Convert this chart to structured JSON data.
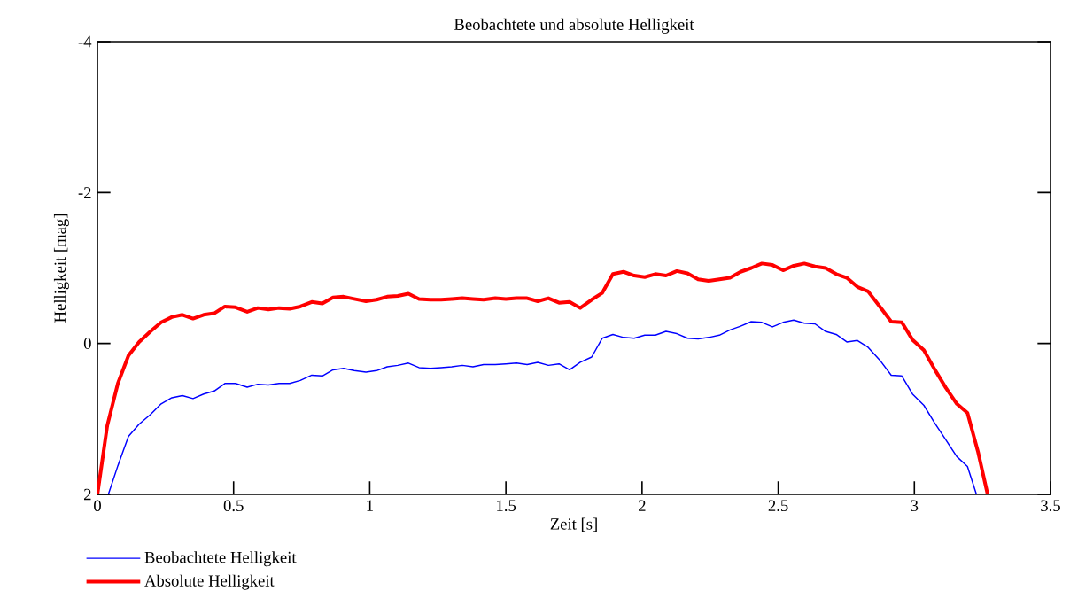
{
  "chart_data": {
    "type": "line",
    "title": "Beobachtete und absolute Helligkeit",
    "xlabel": "Zeit [s]",
    "ylabel": "Helligkeit [mag]",
    "xlim": [
      0,
      3.5
    ],
    "ylim": [
      2,
      -4
    ],
    "xticks": [
      0,
      0.5,
      1,
      1.5,
      2,
      2.5,
      3,
      3.5
    ],
    "yticks": [
      -4,
      -2,
      0,
      2
    ],
    "grid": false,
    "legend": "bottom",
    "marker": "none",
    "line_style": "solid",
    "series": [
      {
        "name": "Beobachtete Helligkeit",
        "color": "#0000ff",
        "x": [
          0.04,
          0.075,
          0.114,
          0.153,
          0.195,
          0.234,
          0.273,
          0.312,
          0.351,
          0.39,
          0.429,
          0.468,
          0.507,
          0.55,
          0.589,
          0.628,
          0.667,
          0.706,
          0.745,
          0.787,
          0.826,
          0.865,
          0.904,
          0.943,
          0.986,
          1.025,
          1.064,
          1.103,
          1.142,
          1.181,
          1.223,
          1.262,
          1.301,
          1.34,
          1.379,
          1.418,
          1.461,
          1.5,
          1.539,
          1.578,
          1.617,
          1.656,
          1.695,
          1.734,
          1.773,
          1.815,
          1.854,
          1.893,
          1.932,
          1.971,
          2.01,
          2.049,
          2.088,
          2.128,
          2.167,
          2.206,
          2.245,
          2.284,
          2.323,
          2.362,
          2.401,
          2.44,
          2.479,
          2.518,
          2.557,
          2.596,
          2.635,
          2.674,
          2.713,
          2.752,
          2.791,
          2.83,
          2.873,
          2.915,
          2.954,
          2.993,
          3.035,
          3.074,
          3.116,
          3.156,
          3.195,
          3.228
        ],
        "values": [
          2.0,
          1.62,
          1.23,
          1.07,
          0.94,
          0.8,
          0.72,
          0.69,
          0.73,
          0.67,
          0.63,
          0.53,
          0.53,
          0.58,
          0.54,
          0.55,
          0.53,
          0.53,
          0.49,
          0.42,
          0.43,
          0.35,
          0.33,
          0.36,
          0.38,
          0.36,
          0.31,
          0.29,
          0.26,
          0.32,
          0.33,
          0.32,
          0.31,
          0.29,
          0.31,
          0.28,
          0.28,
          0.27,
          0.26,
          0.28,
          0.25,
          0.29,
          0.27,
          0.35,
          0.25,
          0.18,
          -0.07,
          -0.12,
          -0.08,
          -0.07,
          -0.11,
          -0.11,
          -0.16,
          -0.13,
          -0.07,
          -0.06,
          -0.08,
          -0.11,
          -0.18,
          -0.23,
          -0.29,
          -0.28,
          -0.22,
          -0.28,
          -0.31,
          -0.27,
          -0.26,
          -0.16,
          -0.12,
          -0.02,
          -0.04,
          0.05,
          0.22,
          0.42,
          0.43,
          0.67,
          0.82,
          1.05,
          1.28,
          1.5,
          1.63,
          2.0
        ]
      },
      {
        "name": "Absolute Helligkeit",
        "color": "#ff0000",
        "x": [
          0,
          0.036,
          0.075,
          0.114,
          0.153,
          0.195,
          0.234,
          0.273,
          0.312,
          0.351,
          0.39,
          0.429,
          0.468,
          0.507,
          0.55,
          0.589,
          0.628,
          0.667,
          0.706,
          0.745,
          0.787,
          0.826,
          0.865,
          0.904,
          0.943,
          0.986,
          1.025,
          1.064,
          1.103,
          1.142,
          1.181,
          1.223,
          1.262,
          1.301,
          1.34,
          1.379,
          1.418,
          1.461,
          1.5,
          1.539,
          1.578,
          1.617,
          1.656,
          1.695,
          1.734,
          1.773,
          1.815,
          1.854,
          1.893,
          1.932,
          1.971,
          2.01,
          2.049,
          2.088,
          2.128,
          2.167,
          2.206,
          2.245,
          2.284,
          2.323,
          2.362,
          2.401,
          2.44,
          2.479,
          2.518,
          2.557,
          2.596,
          2.635,
          2.674,
          2.713,
          2.752,
          2.791,
          2.83,
          2.873,
          2.915,
          2.954,
          2.993,
          3.035,
          3.074,
          3.116,
          3.156,
          3.195,
          3.234,
          3.269
        ],
        "values": [
          2.0,
          1.09,
          0.53,
          0.16,
          -0.02,
          -0.16,
          -0.28,
          -0.35,
          -0.38,
          -0.33,
          -0.38,
          -0.4,
          -0.49,
          -0.48,
          -0.42,
          -0.47,
          -0.45,
          -0.47,
          -0.46,
          -0.49,
          -0.55,
          -0.53,
          -0.61,
          -0.62,
          -0.59,
          -0.56,
          -0.58,
          -0.62,
          -0.63,
          -0.66,
          -0.59,
          -0.58,
          -0.58,
          -0.59,
          -0.6,
          -0.59,
          -0.58,
          -0.6,
          -0.59,
          -0.6,
          -0.6,
          -0.56,
          -0.6,
          -0.54,
          -0.55,
          -0.47,
          -0.58,
          -0.67,
          -0.92,
          -0.95,
          -0.9,
          -0.88,
          -0.92,
          -0.9,
          -0.96,
          -0.93,
          -0.85,
          -0.83,
          -0.85,
          -0.87,
          -0.95,
          -1.0,
          -1.06,
          -1.04,
          -0.97,
          -1.03,
          -1.06,
          -1.02,
          -1.0,
          -0.92,
          -0.87,
          -0.75,
          -0.69,
          -0.49,
          -0.29,
          -0.28,
          -0.05,
          0.09,
          0.34,
          0.59,
          0.8,
          0.92,
          1.44,
          2.0
        ]
      }
    ]
  }
}
